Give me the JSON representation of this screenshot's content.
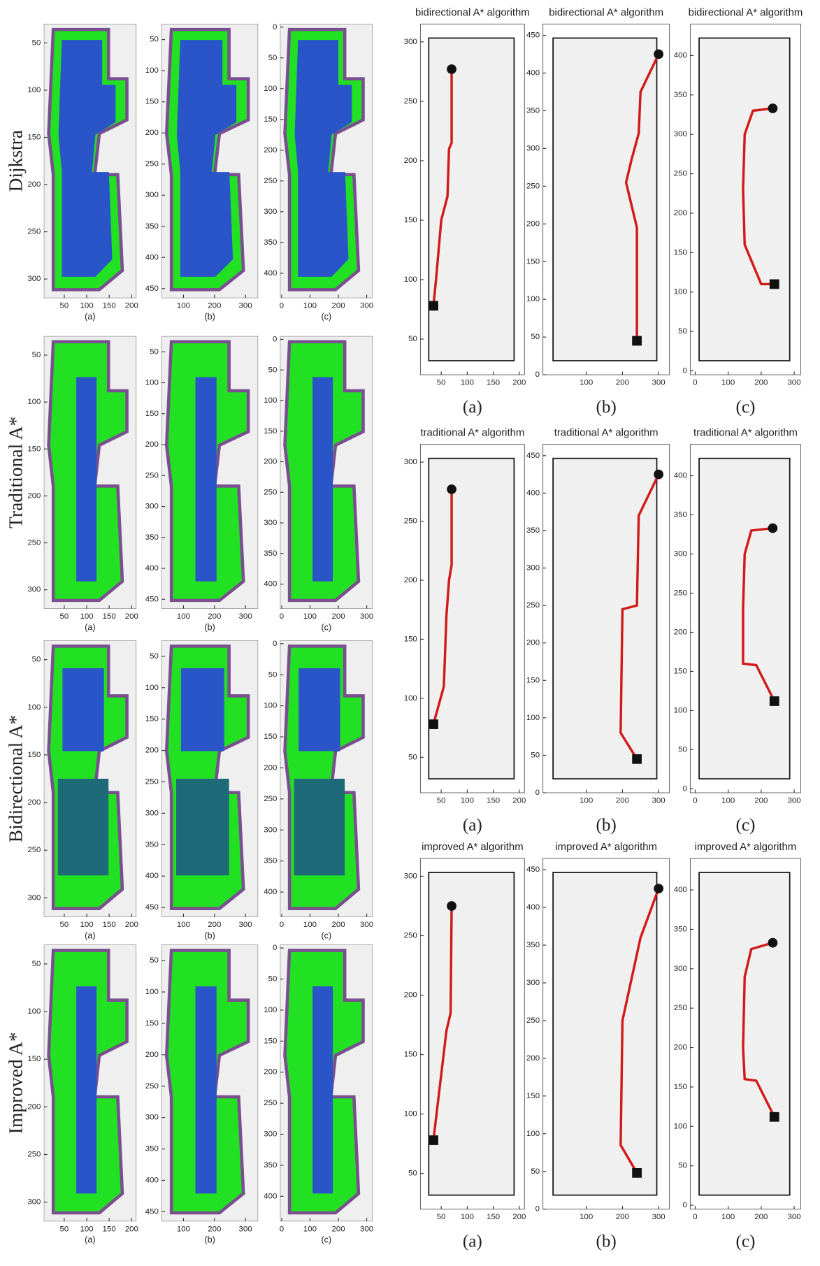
{
  "left": {
    "row_labels": [
      "Dijkstra",
      "Traditional A*",
      "Bidirectional A*",
      "Improved A*"
    ],
    "captions": [
      "(a)",
      "(b)",
      "(c)"
    ],
    "maps": [
      {
        "xlim": [
          5,
          210
        ],
        "ylim": [
          30,
          320
        ],
        "xticks": [
          50,
          100,
          150,
          200
        ],
        "yticks": [
          50,
          100,
          150,
          200,
          250,
          300
        ]
      },
      {
        "xlim": [
          30,
          340
        ],
        "ylim": [
          25,
          465
        ],
        "xticks": [
          100,
          200,
          300
        ],
        "yticks": [
          50,
          100,
          150,
          200,
          250,
          300,
          350,
          400,
          450
        ]
      },
      {
        "xlim": [
          -5,
          320
        ],
        "ylim": [
          -5,
          440
        ],
        "xticks": [
          0,
          100,
          200,
          300
        ],
        "yticks": [
          0,
          50,
          100,
          150,
          200,
          250,
          300,
          350,
          400
        ]
      }
    ]
  },
  "right": {
    "titles": [
      "bidirectional A* algorithm",
      "traditional A* algorithm",
      "improved A* algorithm"
    ],
    "captions": [
      "(a)",
      "(b)",
      "(c)"
    ],
    "maps": [
      {
        "xlim": [
          10,
          210
        ],
        "ylim": [
          20,
          315
        ],
        "xticks": [
          50,
          100,
          150,
          200
        ],
        "yticks": [
          50,
          100,
          150,
          200,
          250,
          300
        ]
      },
      {
        "xlim": [
          -20,
          330
        ],
        "ylim": [
          0,
          465
        ],
        "xticks": [
          100,
          200,
          300
        ],
        "yticks": [
          0,
          50,
          100,
          150,
          200,
          250,
          300,
          350,
          400,
          450
        ]
      },
      {
        "xlim": [
          -15,
          320
        ],
        "ylim": [
          -5,
          440
        ],
        "xticks": [
          0,
          100,
          200,
          300
        ],
        "yticks": [
          0,
          50,
          100,
          150,
          200,
          250,
          300,
          350,
          400
        ]
      }
    ],
    "paths": [
      [
        {
          "x": [
            70,
            70,
            65,
            62,
            50,
            40,
            35
          ],
          "y": [
            277,
            215,
            210,
            170,
            150,
            100,
            78
          ]
        },
        {
          "x": [
            300,
            250,
            245,
            225,
            210,
            225,
            240,
            240
          ],
          "y": [
            425,
            375,
            320,
            285,
            255,
            225,
            195,
            45
          ]
        },
        {
          "x": [
            235,
            175,
            150,
            145,
            150,
            200,
            240
          ],
          "y": [
            333,
            330,
            300,
            230,
            160,
            110,
            110
          ]
        }
      ],
      [
        {
          "x": [
            70,
            70,
            65,
            60,
            55,
            35
          ],
          "y": [
            277,
            213,
            200,
            170,
            110,
            78
          ]
        },
        {
          "x": [
            300,
            245,
            240,
            200,
            195,
            240
          ],
          "y": [
            425,
            370,
            250,
            245,
            80,
            45
          ]
        },
        {
          "x": [
            235,
            170,
            150,
            145,
            145,
            185,
            240
          ],
          "y": [
            333,
            330,
            300,
            230,
            160,
            158,
            112
          ]
        }
      ],
      [
        {
          "x": [
            70,
            68,
            60,
            35
          ],
          "y": [
            275,
            185,
            170,
            78
          ]
        },
        {
          "x": [
            300,
            250,
            200,
            195,
            240
          ],
          "y": [
            425,
            360,
            250,
            85,
            48
          ]
        },
        {
          "x": [
            235,
            170,
            150,
            145,
            150,
            185,
            240
          ],
          "y": [
            333,
            325,
            290,
            200,
            160,
            158,
            112
          ]
        }
      ]
    ]
  }
}
